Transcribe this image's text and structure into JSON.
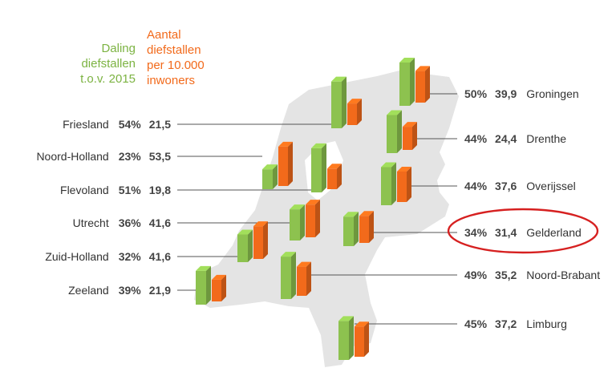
{
  "headers": {
    "decline": [
      "Daling",
      "diefstallen",
      "t.o.v. 2015"
    ],
    "rate": [
      "Aantal",
      "diefstallen",
      "per 10.000",
      "inwoners"
    ]
  },
  "colors": {
    "decline": "#8dc24f",
    "rate": "#f26a1b",
    "map": "#e4e4e4",
    "highlight": "#d62020"
  },
  "chart_data": {
    "type": "bar",
    "series": [
      {
        "name": "Daling diefstallen t.o.v. 2015",
        "unit": "%"
      },
      {
        "name": "Aantal diefstallen per 10.000 inwoners"
      }
    ],
    "provinces": [
      {
        "name": "Friesland",
        "decline": "54%",
        "rate": "21,5",
        "decline_value": 54,
        "rate_value": 21.5
      },
      {
        "name": "Noord-Holland",
        "decline": "23%",
        "rate": "53,5",
        "decline_value": 23,
        "rate_value": 53.5
      },
      {
        "name": "Flevoland",
        "decline": "51%",
        "rate": "19,8",
        "decline_value": 51,
        "rate_value": 19.8
      },
      {
        "name": "Utrecht",
        "decline": "36%",
        "rate": "41,6",
        "decline_value": 36,
        "rate_value": 41.6
      },
      {
        "name": "Zuid-Holland",
        "decline": "32%",
        "rate": "41,6",
        "decline_value": 32,
        "rate_value": 41.6
      },
      {
        "name": "Zeeland",
        "decline": "39%",
        "rate": "21,9",
        "decline_value": 39,
        "rate_value": 21.9
      },
      {
        "name": "Groningen",
        "decline": "50%",
        "rate": "39,9",
        "decline_value": 50,
        "rate_value": 39.9
      },
      {
        "name": "Drenthe",
        "decline": "44%",
        "rate": "24,4",
        "decline_value": 44,
        "rate_value": 24.4
      },
      {
        "name": "Overijssel",
        "decline": "44%",
        "rate": "37,6",
        "decline_value": 44,
        "rate_value": 37.6
      },
      {
        "name": "Gelderland",
        "decline": "34%",
        "rate": "31,4",
        "decline_value": 34,
        "rate_value": 31.4,
        "highlighted": true
      },
      {
        "name": "Noord-Brabant",
        "decline": "49%",
        "rate": "35,2",
        "decline_value": 49,
        "rate_value": 35.2
      },
      {
        "name": "Limburg",
        "decline": "45%",
        "rate": "37,2",
        "decline_value": 45,
        "rate_value": 37.2
      }
    ]
  }
}
